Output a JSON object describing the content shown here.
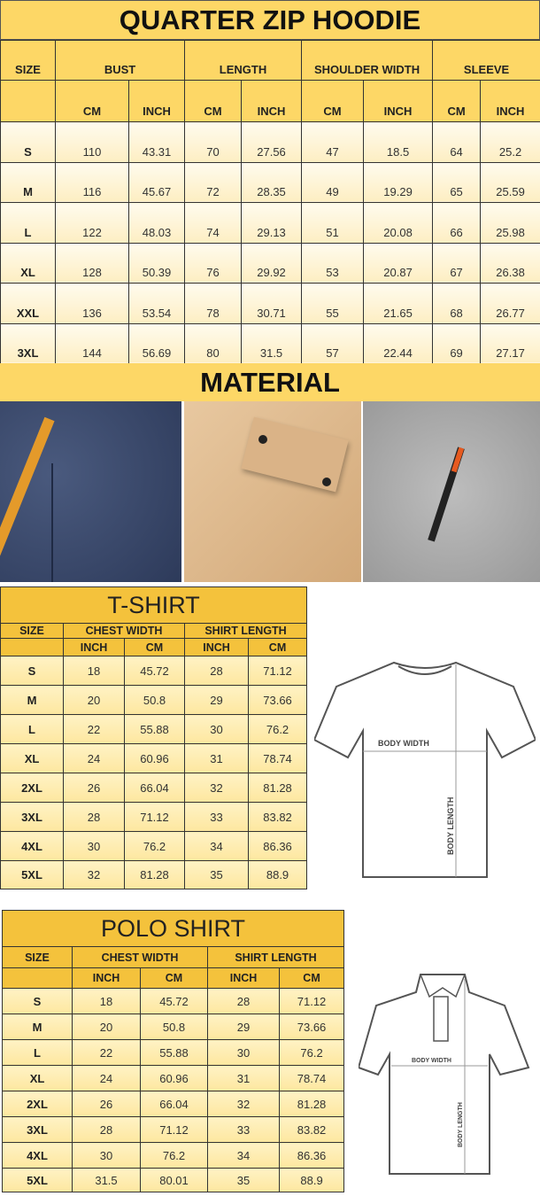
{
  "hoodie": {
    "title": "QUARTER ZIP HOODIE",
    "size_label": "SIZE",
    "groups": [
      "BUST",
      "LENGTH",
      "SHOULDER WIDTH",
      "SLEEVE"
    ],
    "units": [
      "CM",
      "INCH",
      "CM",
      "INCH",
      "CM",
      "INCH",
      "CM",
      "INCH"
    ],
    "rows": [
      [
        "S",
        "110",
        "43.31",
        "70",
        "27.56",
        "47",
        "18.5",
        "64",
        "25.2"
      ],
      [
        "M",
        "116",
        "45.67",
        "72",
        "28.35",
        "49",
        "19.29",
        "65",
        "25.59"
      ],
      [
        "L",
        "122",
        "48.03",
        "74",
        "29.13",
        "51",
        "20.08",
        "66",
        "25.98"
      ],
      [
        "XL",
        "128",
        "50.39",
        "76",
        "29.92",
        "53",
        "20.87",
        "67",
        "26.38"
      ],
      [
        "XXL",
        "136",
        "53.54",
        "78",
        "30.71",
        "55",
        "21.65",
        "68",
        "26.77"
      ],
      [
        "3XL",
        "144",
        "56.69",
        "80",
        "31.5",
        "57",
        "22.44",
        "69",
        "27.17"
      ]
    ]
  },
  "material": {
    "title": "MATERIAL",
    "photos": [
      "navy-fabric-with-orange-strap",
      "tan-fabric-with-pocket-flap",
      "gray-fabric-with-zip-pocket"
    ]
  },
  "tshirt": {
    "title": "T-SHIRT",
    "size_label": "SIZE",
    "groups": [
      "CHEST WIDTH",
      "SHIRT LENGTH"
    ],
    "units": [
      "INCH",
      "CM",
      "INCH",
      "CM"
    ],
    "rows": [
      [
        "S",
        "18",
        "45.72",
        "28",
        "71.12"
      ],
      [
        "M",
        "20",
        "50.8",
        "29",
        "73.66"
      ],
      [
        "L",
        "22",
        "55.88",
        "30",
        "76.2"
      ],
      [
        "XL",
        "24",
        "60.96",
        "31",
        "78.74"
      ],
      [
        "2XL",
        "26",
        "66.04",
        "32",
        "81.28"
      ],
      [
        "3XL",
        "28",
        "71.12",
        "33",
        "83.82"
      ],
      [
        "4XL",
        "30",
        "76.2",
        "34",
        "86.36"
      ],
      [
        "5XL",
        "32",
        "81.28",
        "35",
        "88.9"
      ]
    ],
    "diagram": {
      "width_label": "BODY WIDTH",
      "length_label": "BODY LENGTH"
    }
  },
  "polo": {
    "title": "POLO SHIRT",
    "size_label": "SIZE",
    "groups": [
      "CHEST WIDTH",
      "SHIRT LENGTH"
    ],
    "units": [
      "INCH",
      "CM",
      "INCH",
      "CM"
    ],
    "rows": [
      [
        "S",
        "18",
        "45.72",
        "28",
        "71.12"
      ],
      [
        "M",
        "20",
        "50.8",
        "29",
        "73.66"
      ],
      [
        "L",
        "22",
        "55.88",
        "30",
        "76.2"
      ],
      [
        "XL",
        "24",
        "60.96",
        "31",
        "78.74"
      ],
      [
        "2XL",
        "26",
        "66.04",
        "32",
        "81.28"
      ],
      [
        "3XL",
        "28",
        "71.12",
        "33",
        "83.82"
      ],
      [
        "4XL",
        "30",
        "76.2",
        "34",
        "86.36"
      ],
      [
        "5XL",
        "31.5",
        "80.01",
        "35",
        "88.9"
      ]
    ],
    "diagram": {
      "width_label": "BODY WIDTH",
      "length_label": "BODY LENGTH"
    }
  }
}
